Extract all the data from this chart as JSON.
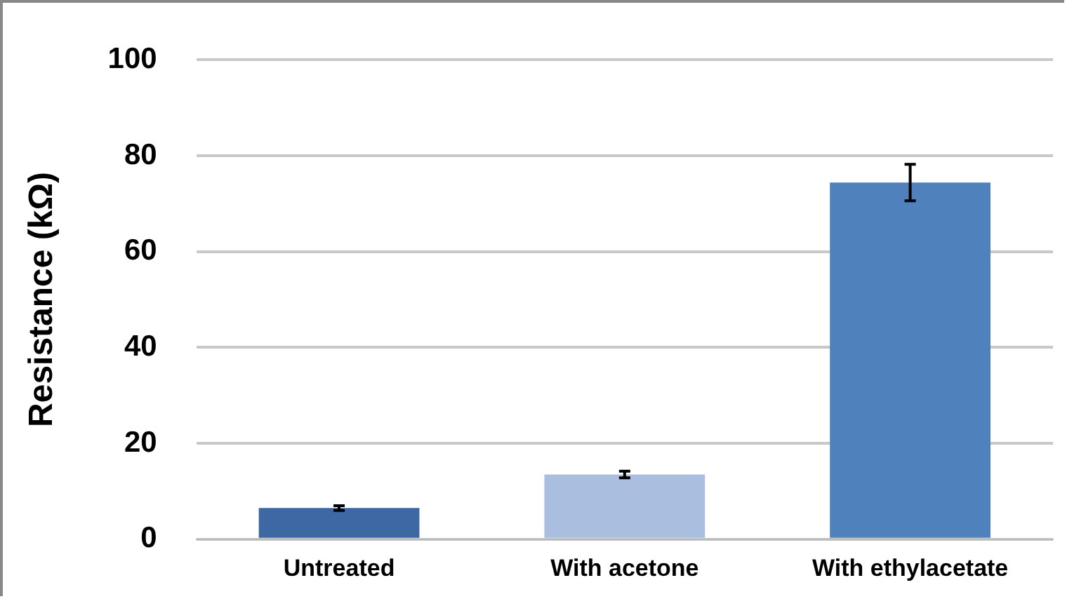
{
  "chart_data": {
    "type": "bar",
    "ylabel": "Resistance (kΩ)",
    "categories": [
      "Untreated",
      "With acetone",
      "With ethylacetate"
    ],
    "values": [
      6.5,
      13.5,
      74.4
    ],
    "colors": [
      "#3d68a3",
      "#aabfe0",
      "#4f81bd"
    ],
    "errors": [
      0.5,
      0.7,
      3.8
    ],
    "ylim": [
      0,
      100
    ],
    "yticks": [
      0,
      20,
      40,
      60,
      80,
      100
    ],
    "grid": "y",
    "legend": false
  }
}
